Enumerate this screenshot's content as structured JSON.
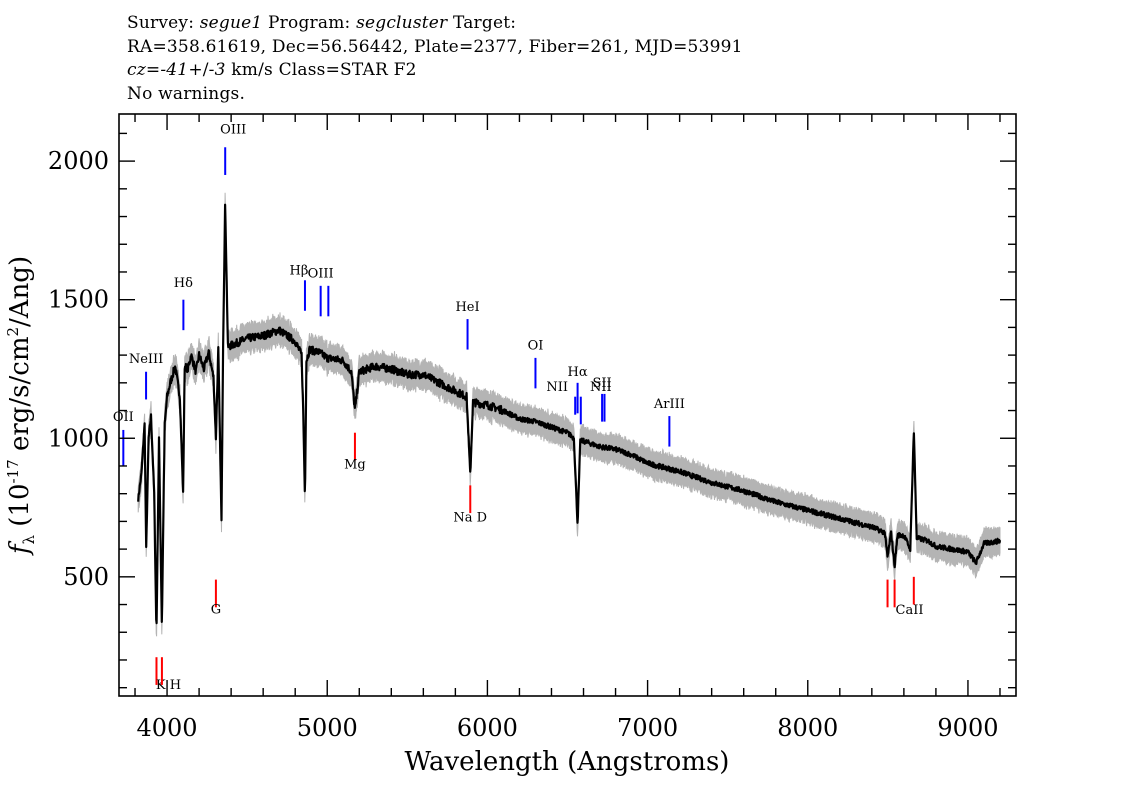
{
  "header": {
    "survey_label": "Survey:",
    "survey": "segue1",
    "program_label": "Program:",
    "program": "segcluster",
    "target_label": "Target:",
    "line2": "RA=358.61619, Dec=56.56442, Plate=2377, Fiber=261, MJD=53991",
    "cz_label": "cz=",
    "cz_value": "-41",
    "cz_pm": "+/-",
    "cz_err": "3",
    "cz_unit": "km/s",
    "class_text": "Class=STAR F2",
    "line4": "No warnings."
  },
  "chart_data": {
    "type": "line",
    "title": "",
    "xlabel": "Wavelength (Angstroms)",
    "ylabel": "f_λ (10^-17 erg/s/cm^2/Ang)",
    "xlim": [
      3700,
      9300
    ],
    "ylim": [
      70,
      2170
    ],
    "x_ticks": [
      4000,
      5000,
      6000,
      7000,
      8000,
      9000
    ],
    "y_ticks": [
      500,
      1000,
      1500,
      2000
    ],
    "x_minor_step": 200,
    "y_minor_step": 100,
    "colors": {
      "flux": "#000000",
      "error": "#b4b4b4",
      "emission": "#0000ff",
      "absorption": "#ff0000"
    },
    "spectrum": {
      "x": [
        3820,
        3840,
        3860,
        3870,
        3885,
        3900,
        3920,
        3934,
        3950,
        3968,
        3985,
        4000,
        4020,
        4050,
        4080,
        4100,
        4110,
        4130,
        4150,
        4180,
        4200,
        4230,
        4260,
        4290,
        4305,
        4320,
        4340,
        4350,
        4363,
        4380,
        4420,
        4500,
        4600,
        4700,
        4800,
        4840,
        4850,
        4861,
        4870,
        4890,
        4950,
        5000,
        5100,
        5150,
        5173,
        5200,
        5300,
        5400,
        5500,
        5600,
        5700,
        5800,
        5870,
        5893,
        5910,
        6000,
        6100,
        6200,
        6300,
        6400,
        6500,
        6540,
        6563,
        6580,
        6600,
        6700,
        6800,
        6900,
        7000,
        7200,
        7400,
        7600,
        7800,
        8000,
        8200,
        8400,
        8480,
        8498,
        8520,
        8542,
        8560,
        8600,
        8640,
        8662,
        8680,
        8750,
        8800,
        8900,
        9000,
        9050,
        9100,
        9200
      ],
      "y": [
        780,
        870,
        1050,
        600,
        1000,
        1080,
        800,
        290,
        1000,
        320,
        1050,
        1150,
        1200,
        1260,
        1150,
        800,
        1260,
        1250,
        1300,
        1240,
        1300,
        1250,
        1310,
        1220,
        1000,
        1320,
        700,
        1340,
        1850,
        1330,
        1340,
        1360,
        1370,
        1390,
        1350,
        1300,
        1100,
        780,
        1280,
        1320,
        1310,
        1290,
        1280,
        1240,
        1100,
        1240,
        1260,
        1250,
        1230,
        1230,
        1200,
        1170,
        1150,
        870,
        1130,
        1120,
        1100,
        1070,
        1060,
        1040,
        1020,
        1000,
        690,
        990,
        990,
        970,
        960,
        940,
        910,
        880,
        840,
        810,
        770,
        740,
        710,
        680,
        660,
        570,
        660,
        540,
        650,
        650,
        600,
        1030,
        640,
        630,
        610,
        600,
        590,
        550,
        620,
        630
      ],
      "error_band": 45
    },
    "emission_lines": [
      {
        "label": "OII",
        "x": 3727,
        "y1": 1030,
        "y2": 900,
        "label_dx": 0,
        "label_y": 1062
      },
      {
        "label": "NeIII",
        "x": 3869,
        "y1": 1240,
        "y2": 1140,
        "label_dx": 0,
        "label_y": 1272
      },
      {
        "label": "Hδ",
        "x": 4102,
        "y1": 1500,
        "y2": 1390,
        "label_dx": 0,
        "label_y": 1545
      },
      {
        "label": "OIII",
        "x": 4363,
        "y1": 2050,
        "y2": 1950,
        "label_dx": 8,
        "label_y": 2100
      },
      {
        "label": "Hβ",
        "x": 4861,
        "y1": 1570,
        "y2": 1460,
        "label_dx": -6,
        "label_y": 1590
      },
      {
        "label": "OIII",
        "x": 4959,
        "y1": 1550,
        "y2": 1440,
        "label_dx": 0,
        "label_y": 1580
      },
      {
        "label": "",
        "x": 5007,
        "y1": 1550,
        "y2": 1440,
        "label_dx": 0,
        "label_y": 0
      },
      {
        "label": "HeI",
        "x": 5876,
        "y1": 1430,
        "y2": 1320,
        "label_dx": 0,
        "label_y": 1460
      },
      {
        "label": "OI",
        "x": 6300,
        "y1": 1290,
        "y2": 1180,
        "label_dx": 0,
        "label_y": 1320
      },
      {
        "label": "NII",
        "x": 6548,
        "y1": 1150,
        "y2": 1085,
        "label_dx": -18,
        "label_y": 1170
      },
      {
        "label": "Hα",
        "x": 6563,
        "y1": 1200,
        "y2": 1090,
        "label_dx": 0,
        "label_y": 1225
      },
      {
        "label": "NII",
        "x": 6583,
        "y1": 1150,
        "y2": 1050,
        "label_dx": 20,
        "label_y": 1170
      },
      {
        "label": "SII",
        "x": 6716,
        "y1": 1160,
        "y2": 1060,
        "label_dx": 0,
        "label_y": 1185
      },
      {
        "label": "",
        "x": 6731,
        "y1": 1160,
        "y2": 1060,
        "label_dx": 0,
        "label_y": 0
      },
      {
        "label": "ArIII",
        "x": 7136,
        "y1": 1080,
        "y2": 970,
        "label_dx": 0,
        "label_y": 1110
      }
    ],
    "absorption_lines": [
      {
        "label": "K H",
        "x": 3934,
        "y1": 210,
        "y2": 110,
        "label_dx": 12,
        "label_y": 95
      },
      {
        "label": "",
        "x": 3968,
        "y1": 210,
        "y2": 110,
        "label_dx": 0,
        "label_y": 0
      },
      {
        "label": "G",
        "x": 4305,
        "y1": 490,
        "y2": 390,
        "label_dx": 0,
        "label_y": 368
      },
      {
        "label": "Mg",
        "x": 5173,
        "y1": 1020,
        "y2": 920,
        "label_dx": 0,
        "label_y": 890
      },
      {
        "label": "Na D",
        "x": 5893,
        "y1": 830,
        "y2": 730,
        "label_dx": 0,
        "label_y": 700
      },
      {
        "label": "CaII",
        "x": 8498,
        "y1": 490,
        "y2": 390,
        "label_dx": 22,
        "label_y": 365
      },
      {
        "label": "",
        "x": 8542,
        "y1": 490,
        "y2": 390,
        "label_dx": 0,
        "label_y": 0
      },
      {
        "label": "",
        "x": 8662,
        "y1": 500,
        "y2": 400,
        "label_dx": 0,
        "label_y": 0
      }
    ]
  }
}
